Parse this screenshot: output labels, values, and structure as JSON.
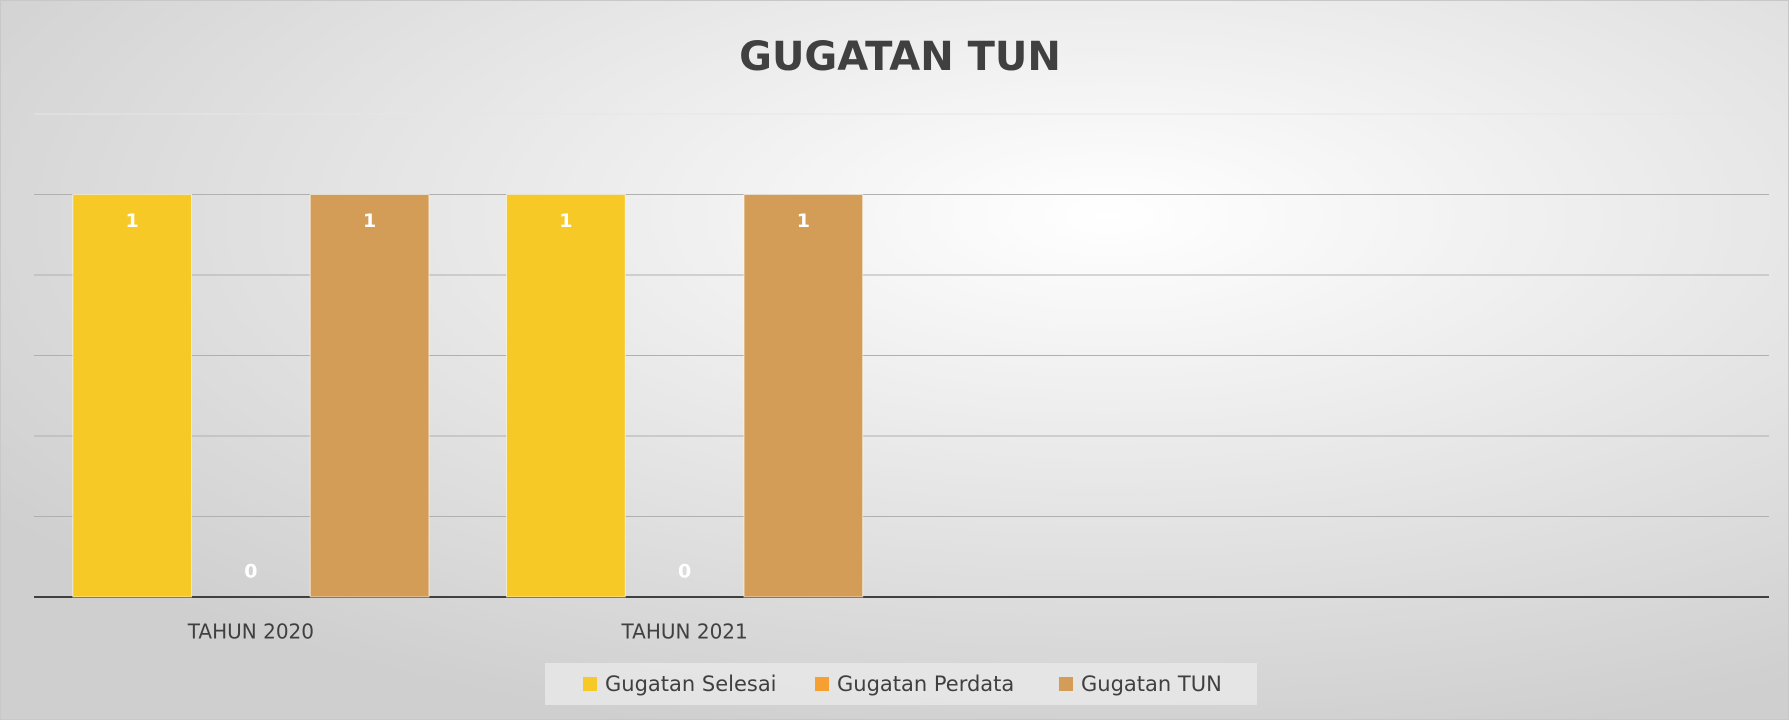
{
  "chart_data": {
    "type": "bar",
    "title": "GUGATAN TUN",
    "categories": [
      "TAHUN 2020",
      "TAHUN 2021",
      null,
      null
    ],
    "series": [
      {
        "name": "Gugatan Selesai",
        "color": "#f7c926",
        "values": [
          1,
          1,
          null,
          null
        ]
      },
      {
        "name": "Gugatan Perdata",
        "color": "#f5a030",
        "values": [
          0,
          0,
          null,
          null
        ]
      },
      {
        "name": "Gugatan TUN",
        "color": "#d39d57",
        "values": [
          1,
          1,
          null,
          null
        ]
      }
    ],
    "ylim": [
      0,
      1.2
    ],
    "yticks": [
      0,
      0.2,
      0.4,
      0.6,
      0.8,
      1,
      1.2
    ],
    "grid": true,
    "legend": "bottom"
  }
}
